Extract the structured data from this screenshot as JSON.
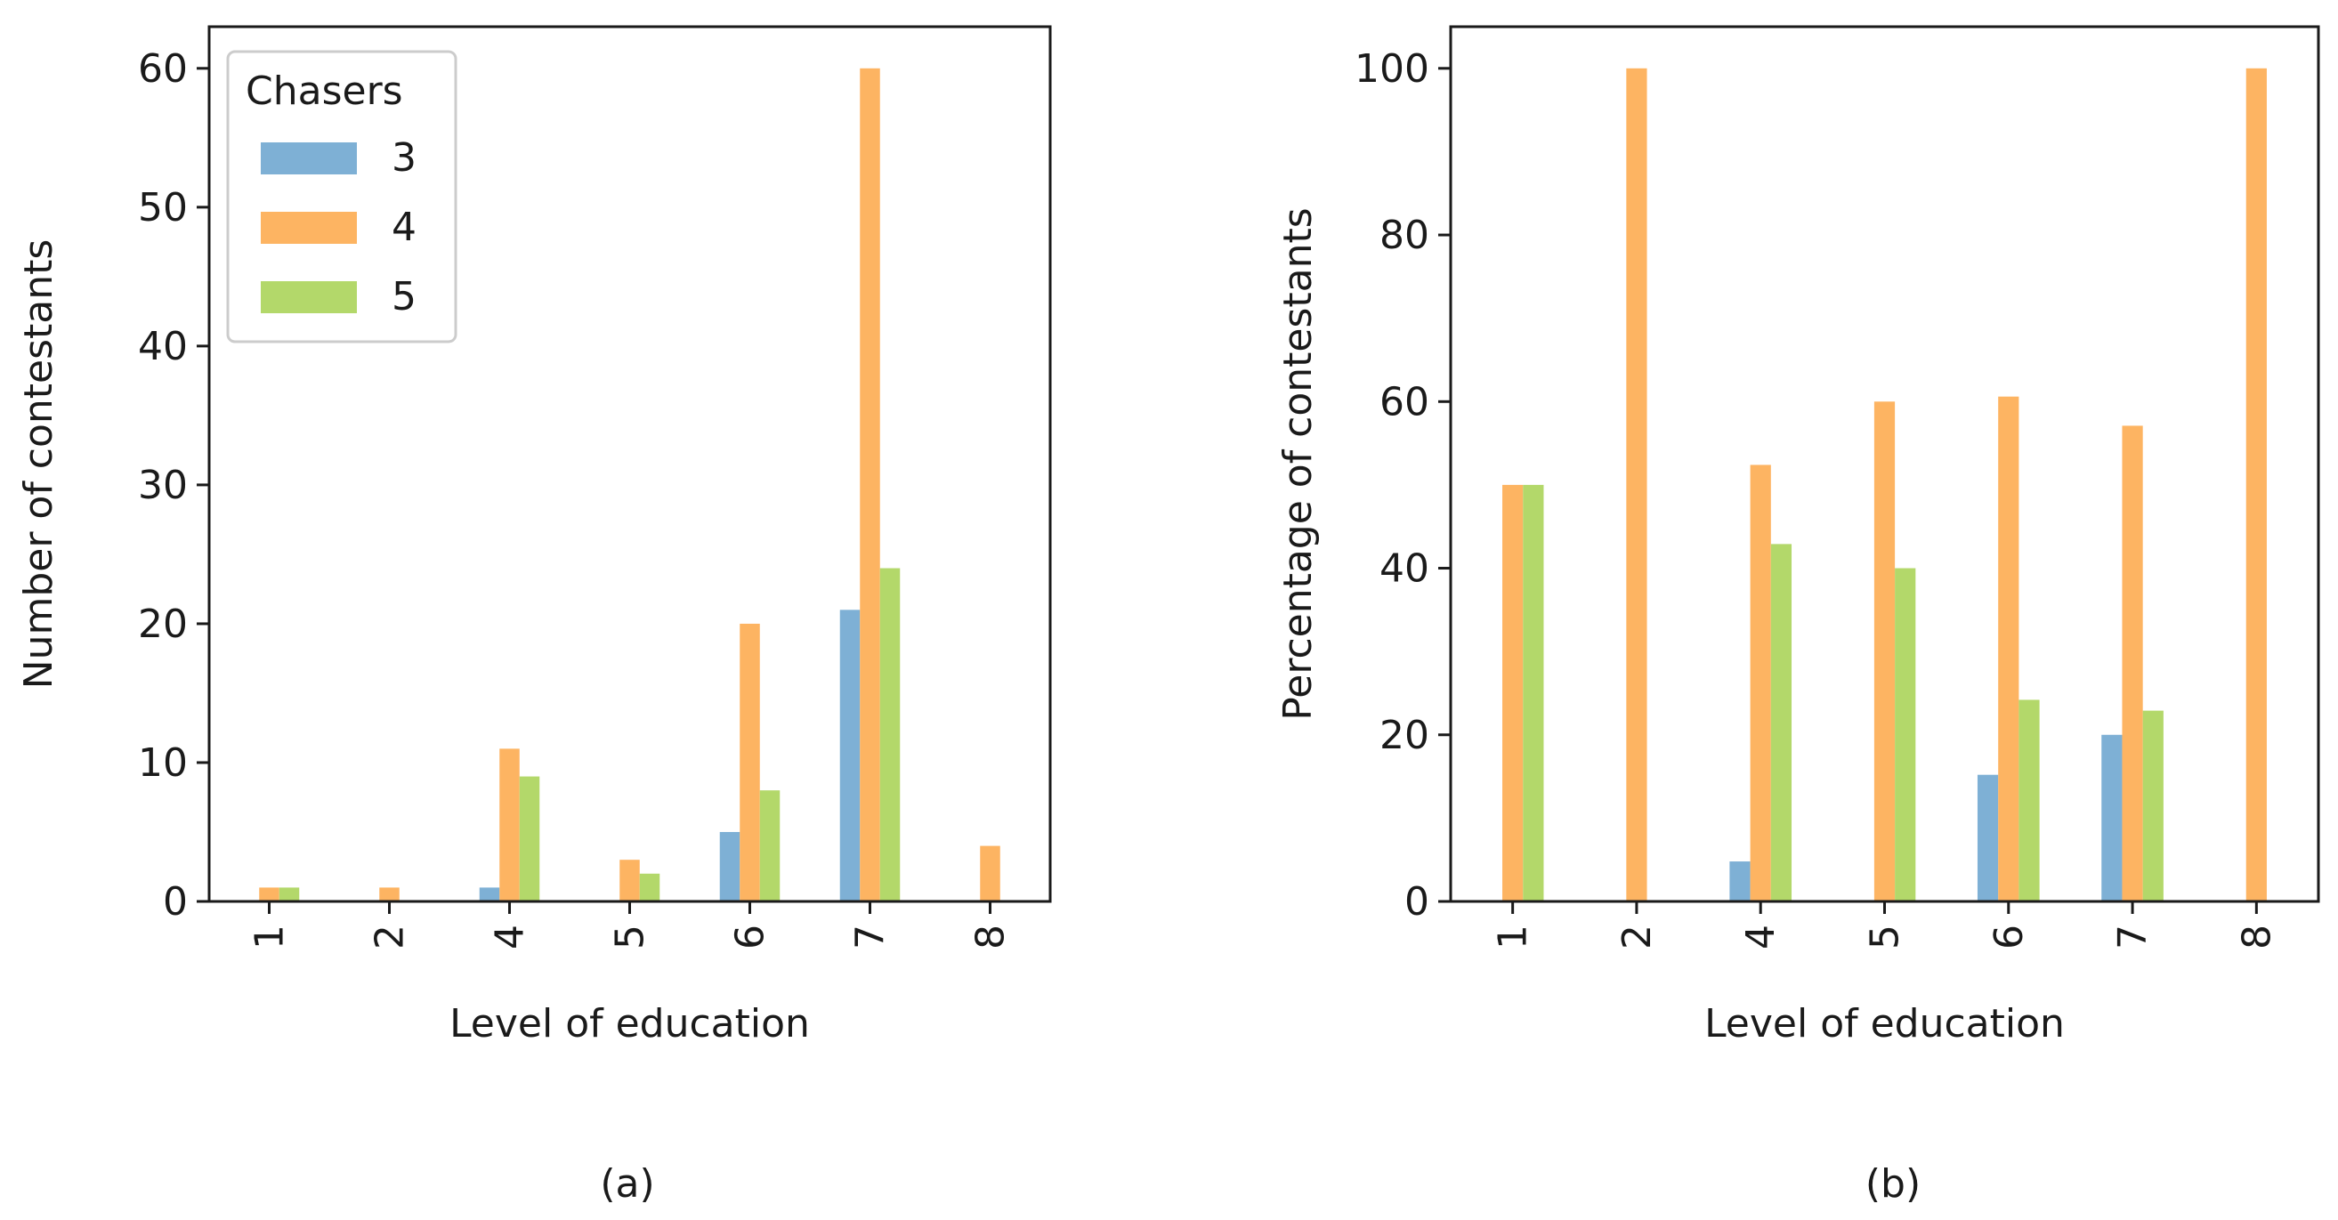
{
  "chart_data": [
    {
      "type": "bar",
      "panel_label": "(a)",
      "categories": [
        "1",
        "2",
        "4",
        "5",
        "6",
        "7",
        "8"
      ],
      "series": [
        {
          "name": "3",
          "values": [
            0,
            0,
            1,
            0,
            5,
            21,
            0
          ]
        },
        {
          "name": "4",
          "values": [
            1,
            1,
            11,
            3,
            20,
            60,
            4
          ]
        },
        {
          "name": "5",
          "values": [
            1,
            0,
            9,
            2,
            8,
            24,
            0
          ]
        }
      ],
      "title": "",
      "xlabel": "Level of education",
      "ylabel": "Number of contestants",
      "ylim": [
        0,
        63
      ],
      "yticks": [
        0,
        10,
        20,
        30,
        40,
        50,
        60
      ],
      "legend": {
        "title": "Chasers",
        "placement": "upper-left"
      }
    },
    {
      "type": "bar",
      "panel_label": "(b)",
      "categories": [
        "1",
        "2",
        "4",
        "5",
        "6",
        "7",
        "8"
      ],
      "series": [
        {
          "name": "3",
          "values": [
            0,
            0,
            4.8,
            0,
            15.2,
            20.0,
            0
          ]
        },
        {
          "name": "4",
          "values": [
            50,
            100,
            52.4,
            60,
            60.6,
            57.1,
            100
          ]
        },
        {
          "name": "5",
          "values": [
            50,
            0,
            42.9,
            40,
            24.2,
            22.9,
            0
          ]
        }
      ],
      "title": "",
      "xlabel": "Level of education",
      "ylabel": "Percentage of contestants",
      "ylim": [
        0,
        105
      ],
      "yticks": [
        0,
        20,
        40,
        60,
        80,
        100
      ]
    }
  ],
  "colors": {
    "series": [
      "#7eb0d5",
      "#fdb462",
      "#b3d86a"
    ],
    "axis": "#1a1a1a"
  }
}
